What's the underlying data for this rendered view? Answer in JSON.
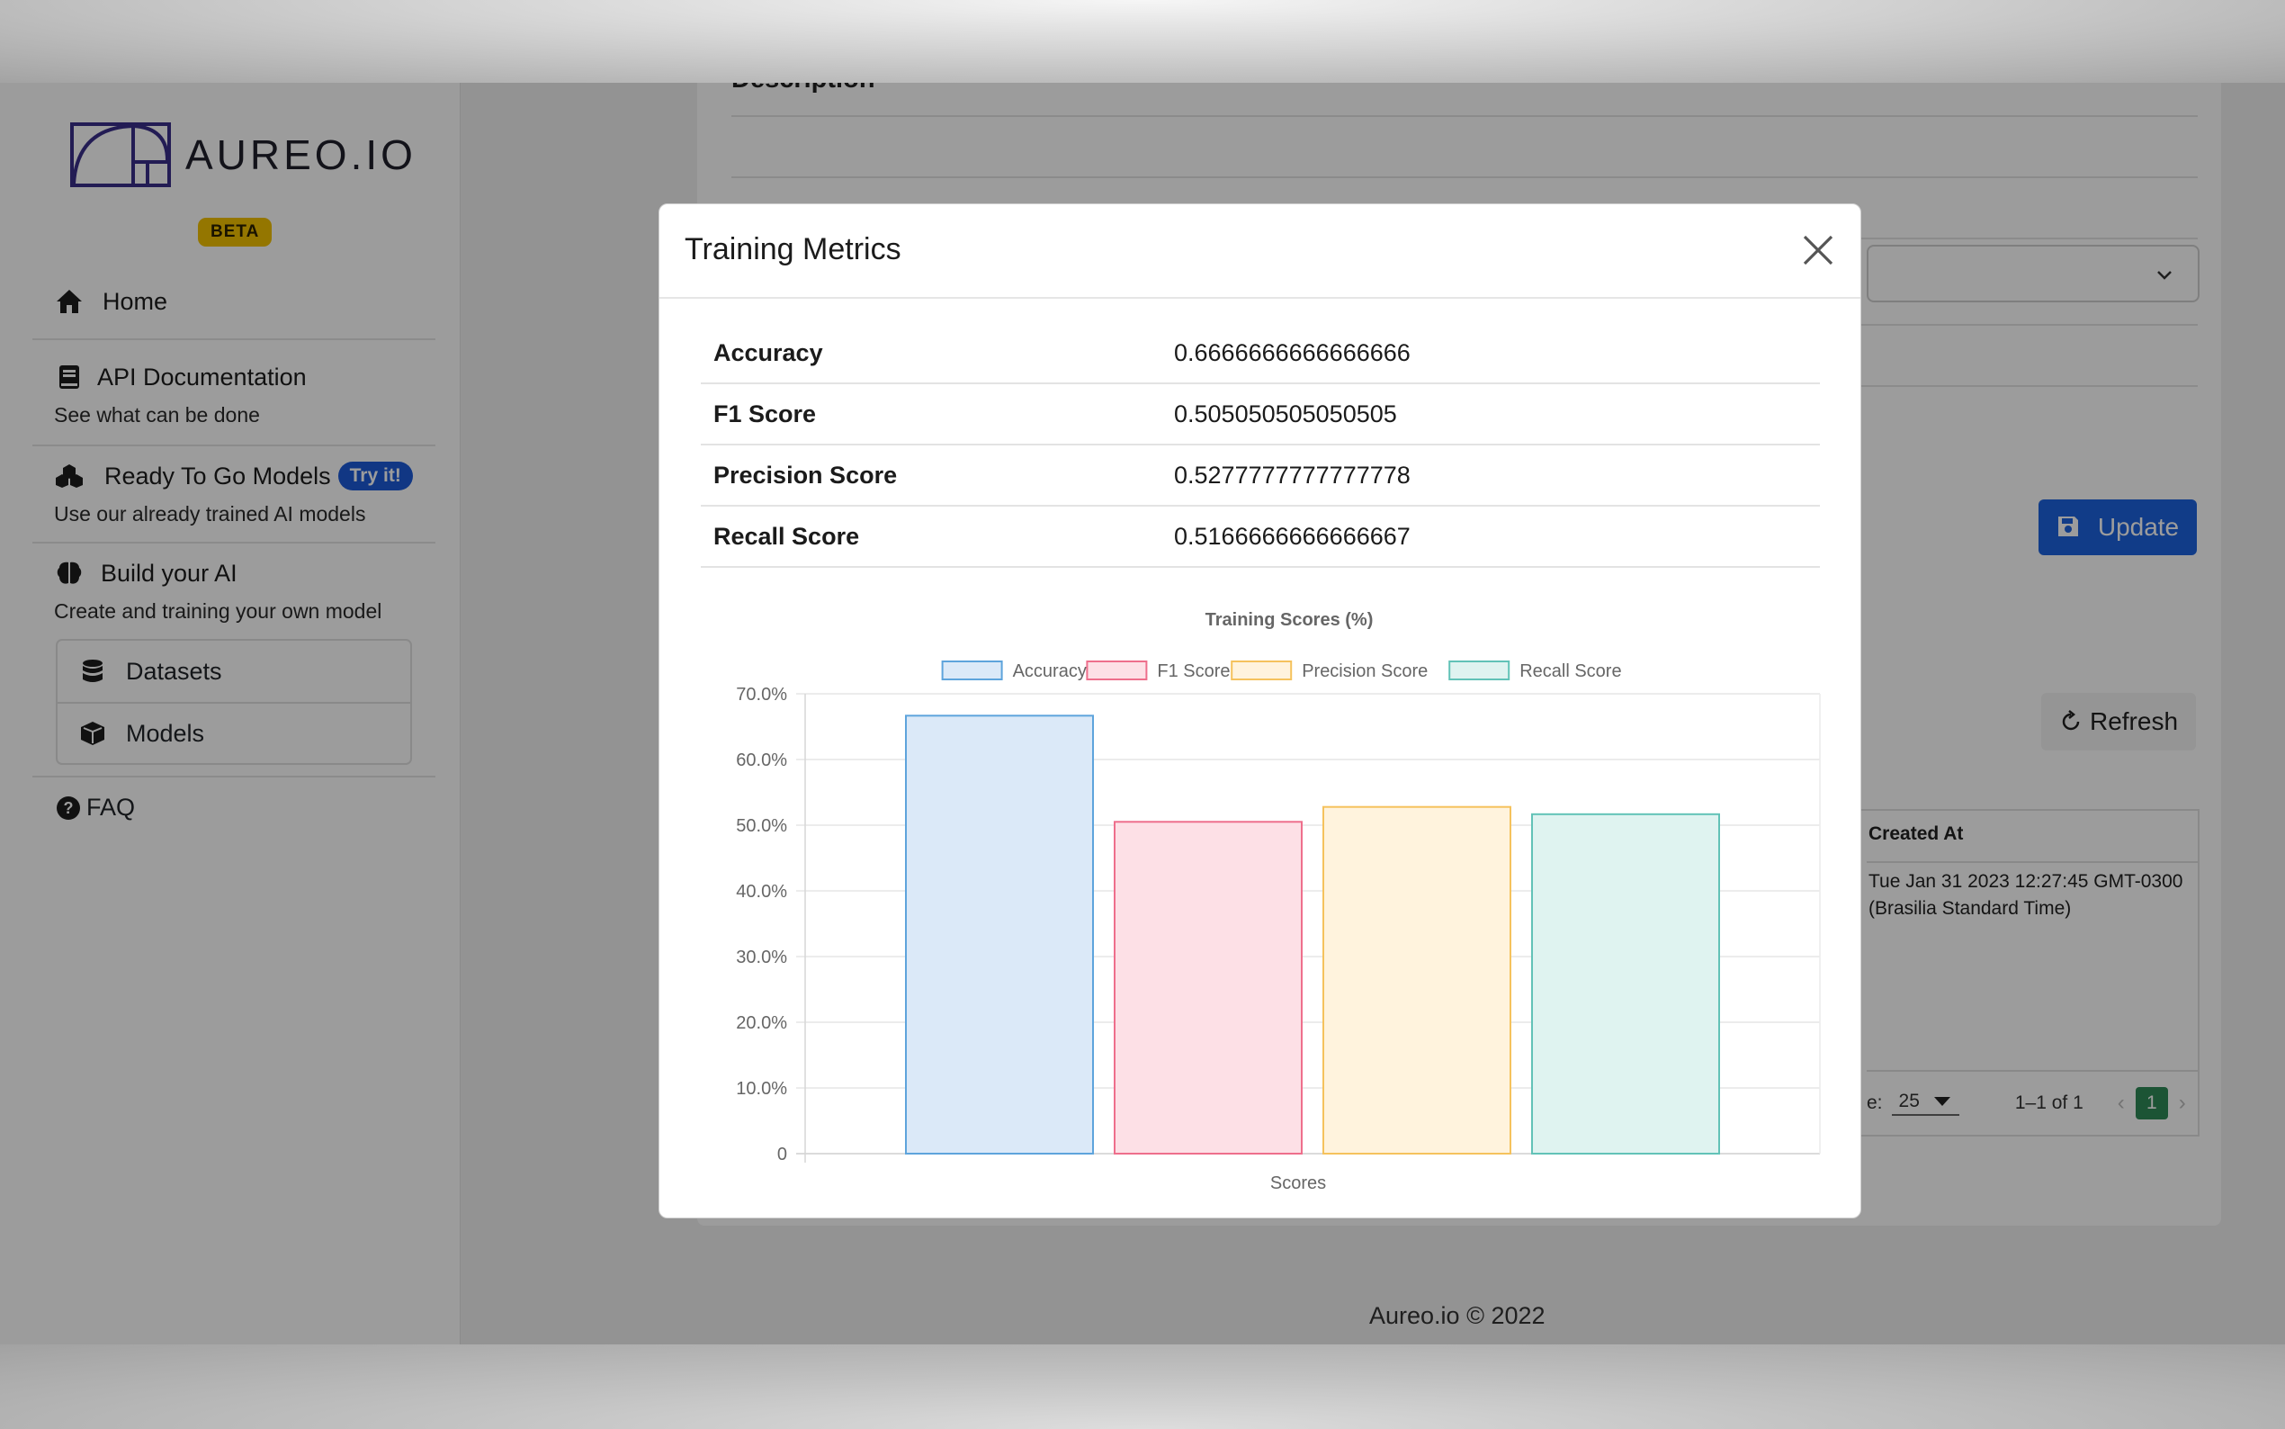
{
  "app": {
    "logo_text": "AUREO.IO",
    "beta_badge": "BETA"
  },
  "sidebar": {
    "home": "Home",
    "api_docs": {
      "label": "API Documentation",
      "sub": "See what can be done"
    },
    "ready_models": {
      "label": "Ready To Go Models",
      "badge": "Try it!",
      "sub": "Use our already trained AI models"
    },
    "build_ai": {
      "label": "Build your AI",
      "sub": "Create and training your own model"
    },
    "datasets": "Datasets",
    "models": "Models",
    "faq": "FAQ"
  },
  "background_page": {
    "description_heading": "Description",
    "update_button": "Update",
    "refresh_button": "Refresh",
    "table": {
      "created_at_header": "Created At",
      "created_at_value": "Tue Jan 31 2023 12:27:45 GMT-0300 (Brasilia Standard Time)",
      "rows_per_page_suffix": "e:",
      "rows_per_page": "25",
      "range": "1–1 of 1",
      "current_page": "1"
    }
  },
  "footer": "Aureo.io © 2022",
  "modal": {
    "title": "Training Metrics",
    "metrics": [
      {
        "name": "Accuracy",
        "value": "0.6666666666666666"
      },
      {
        "name": "F1 Score",
        "value": "0.505050505050505"
      },
      {
        "name": "Precision Score",
        "value": "0.5277777777777778"
      },
      {
        "name": "Recall Score",
        "value": "0.5166666666666667"
      }
    ]
  },
  "colors": {
    "accent": "#1d63de",
    "beta": "#f2c200",
    "page_current": "#2e8a57"
  },
  "chart_data": {
    "type": "bar",
    "title": "Training Scores (%)",
    "xlabel": "Scores",
    "ylabel": "",
    "categories": [
      "Scores"
    ],
    "y_ticks": [
      "0",
      "10.0%",
      "20.0%",
      "30.0%",
      "40.0%",
      "50.0%",
      "60.0%",
      "70.0%"
    ],
    "ylim": [
      0,
      70
    ],
    "grid": true,
    "legend_position": "top",
    "series": [
      {
        "name": "Accuracy",
        "values": [
          66.67
        ],
        "fill": "#dbe9f8",
        "stroke": "#5ea4dc"
      },
      {
        "name": "F1 Score",
        "values": [
          50.51
        ],
        "fill": "#fde0e6",
        "stroke": "#ee6f8c"
      },
      {
        "name": "Precision Score",
        "values": [
          52.78
        ],
        "fill": "#fff3dd",
        "stroke": "#f5c25d"
      },
      {
        "name": "Recall Score",
        "values": [
          51.67
        ],
        "fill": "#dff3f0",
        "stroke": "#62c2b7"
      }
    ]
  }
}
